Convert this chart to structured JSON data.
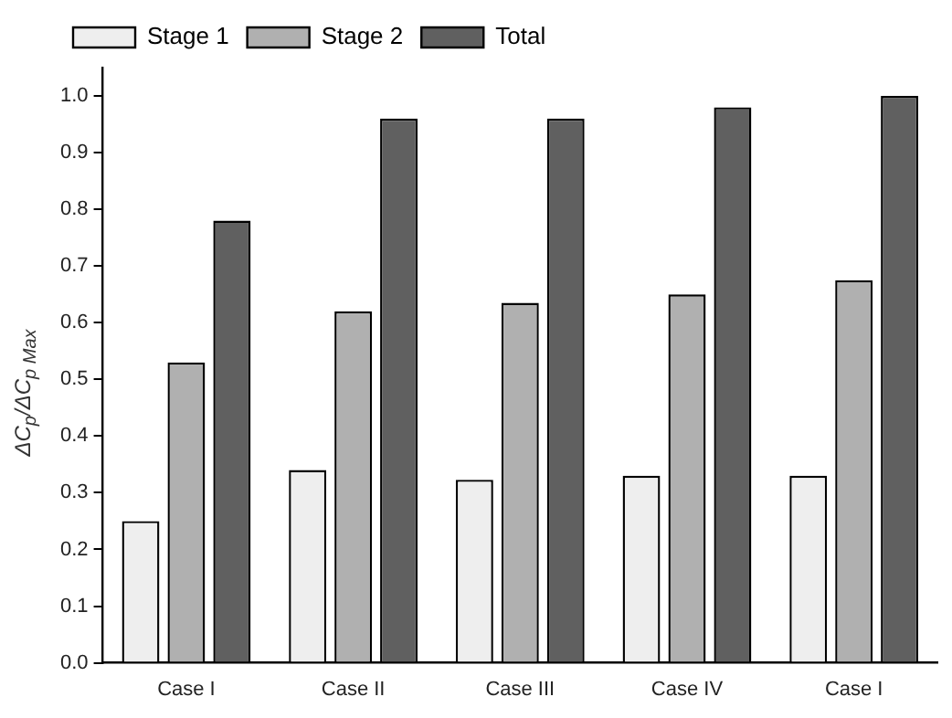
{
  "chart_data": {
    "type": "bar",
    "ylabel": "ΔC$_{p}$/ΔC$_{p Max}$",
    "categories": [
      "Case I",
      "Case II",
      "Case III",
      "Case IV",
      "Case I"
    ],
    "series": [
      {
        "name": "Stage 1",
        "color": "#eeeeee",
        "values": [
          0.25,
          0.34,
          0.323,
          0.33,
          0.33
        ]
      },
      {
        "name": "Stage 2",
        "color": "#b0b0b0",
        "values": [
          0.53,
          0.62,
          0.635,
          0.65,
          0.675
        ]
      },
      {
        "name": "Total",
        "color": "#606060",
        "values": [
          0.78,
          0.96,
          0.96,
          0.98,
          1.0
        ]
      }
    ],
    "ylim": [
      0,
      1.05
    ],
    "yticks": [
      {
        "value": 0,
        "label": "0.0"
      },
      0.1,
      0.2,
      0.3,
      0.4,
      0.5,
      0.6,
      0.7,
      0.8,
      0.9,
      {
        "value": 1,
        "label": "1.0"
      }
    ],
    "grid": false,
    "legend": "top left"
  }
}
